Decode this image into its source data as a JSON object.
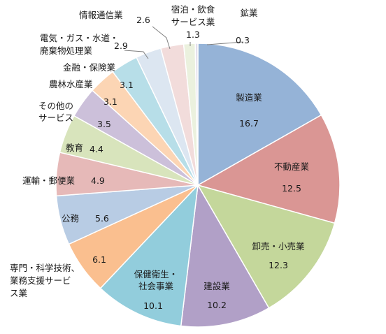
{
  "chart_data": {
    "type": "pie",
    "title": "",
    "start_angle_deg": 0,
    "direction": "clockwise",
    "slices": [
      {
        "label_lines": [
          "製造業"
        ],
        "value": 16.7,
        "value_text": "16.7",
        "color": "#95b3d7"
      },
      {
        "label_lines": [
          "不動産業"
        ],
        "value": 12.5,
        "value_text": "12.5",
        "color": "#da9694"
      },
      {
        "label_lines": [
          "卸売・小売業"
        ],
        "value": 12.3,
        "value_text": "12.3",
        "color": "#c4d79b"
      },
      {
        "label_lines": [
          "建設業"
        ],
        "value": 10.2,
        "value_text": "10.2",
        "color": "#b1a0c7"
      },
      {
        "label_lines": [
          "保健衛生・",
          "社会事業"
        ],
        "value": 10.1,
        "value_text": "10.1",
        "color": "#92cddc"
      },
      {
        "label_lines": [
          "専門・科学技術、",
          "業務支援サービ",
          "ス業"
        ],
        "value": 6.1,
        "value_text": "6.1",
        "color": "#fabf8f"
      },
      {
        "label_lines": [
          "公務"
        ],
        "value": 5.6,
        "value_text": "5.6",
        "color": "#b8cce4"
      },
      {
        "label_lines": [
          "運輸・郵便業"
        ],
        "value": 4.9,
        "value_text": "4.9",
        "color": "#e6b9b8"
      },
      {
        "label_lines": [
          "教育"
        ],
        "value": 4.4,
        "value_text": "4.4",
        "color": "#d8e4bc"
      },
      {
        "label_lines": [
          "その他の",
          "サービス"
        ],
        "value": 3.5,
        "value_text": "3.5",
        "color": "#ccc0da"
      },
      {
        "label_lines": [
          "農林水産業"
        ],
        "value": 3.1,
        "value_text": "3.1",
        "color": "#fcd5b4"
      },
      {
        "label_lines": [
          "金融・保険業"
        ],
        "value": 3.1,
        "value_text": "3.1",
        "color": "#b7dee8"
      },
      {
        "label_lines": [
          "電気・ガス・水道・",
          "廃棄物処理業"
        ],
        "value": 2.9,
        "value_text": "2.9",
        "color": "#dce6f1"
      },
      {
        "label_lines": [
          "情報通信業"
        ],
        "value": 2.6,
        "value_text": "2.6",
        "color": "#f2dcdb"
      },
      {
        "label_lines": [
          "宿泊・飲食",
          "サービス業"
        ],
        "value": 1.3,
        "value_text": "1.3",
        "color": "#ebf1de"
      },
      {
        "label_lines": [
          "鉱業"
        ],
        "value": 0.3,
        "value_text": "0.3",
        "color": "#e4dfec"
      }
    ]
  }
}
